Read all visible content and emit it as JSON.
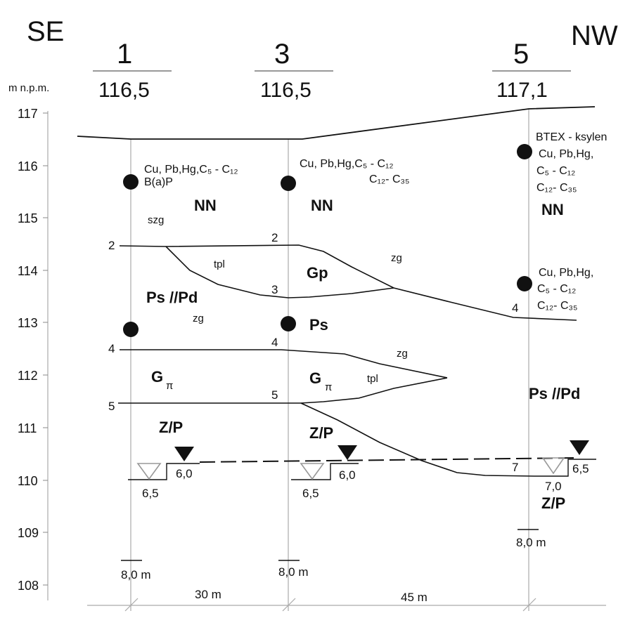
{
  "orientation": {
    "left": "SE",
    "right": "NW"
  },
  "y_axis": {
    "label": "m n.p.m.",
    "ticks": [
      "117",
      "116",
      "115",
      "114",
      "113",
      "112",
      "111",
      "110",
      "109",
      "108"
    ]
  },
  "boreholes": [
    {
      "number": "1",
      "elevation": "116,5",
      "samples": [
        {
          "lines": [
            "Cu, Pb,Hg,C₅ -  C₁₂",
            "B(a)P"
          ]
        },
        {
          "lines": []
        }
      ],
      "water_found": "6,5",
      "water_stabilized": "6,0",
      "depth": "8,0 m"
    },
    {
      "number": "3",
      "elevation": "116,5",
      "samples": [
        {
          "lines": [
            "Cu, Pb,Hg,C₅ -  C₁₂",
            "C₁₂-  C₃₅"
          ]
        },
        {
          "lines": []
        }
      ],
      "water_found": "6,5",
      "water_stabilized": "6,0",
      "depth": "8,0 m"
    },
    {
      "number": "5",
      "elevation": "117,1",
      "samples": [
        {
          "lines": [
            "BTEX - ksylen",
            "Cu, Pb,Hg,",
            "C₅ -  C₁₂",
            "C₁₂-  C₃₅"
          ]
        },
        {
          "lines": [
            "Cu, Pb,Hg,",
            "C₅ -  C₁₂",
            "C₁₂-  C₃₅"
          ]
        }
      ],
      "water_found": "7,0",
      "water_stabilized": "6,5",
      "depth": "8,0 m"
    }
  ],
  "boundary_numbers": {
    "bh1": [
      "2",
      "4",
      "5"
    ],
    "bh3": [
      "2",
      "3",
      "4",
      "5"
    ],
    "bh5": [
      "4",
      "7"
    ]
  },
  "units": {
    "nn_1": "NN",
    "nn_3": "NN",
    "nn_5": "NN",
    "gp": "Gp",
    "ps_pd_left": "Ps //Pd",
    "ps_3": "Ps",
    "g_pi_1": "G",
    "g_pi_3": "G",
    "pi": "π",
    "ps_pd_right": "Ps //Pd",
    "zp_1": "Z/P",
    "zp_3": "Z/P",
    "zp_5": "Z/P"
  },
  "lithology": {
    "szg": "szg",
    "tpl_upper": "tpl",
    "zg_upper": "zg",
    "zg_left": "zg",
    "zg_lens": "zg",
    "tpl_lens": "tpl"
  },
  "distances": {
    "d1": "30 m",
    "d2": "45 m"
  }
}
